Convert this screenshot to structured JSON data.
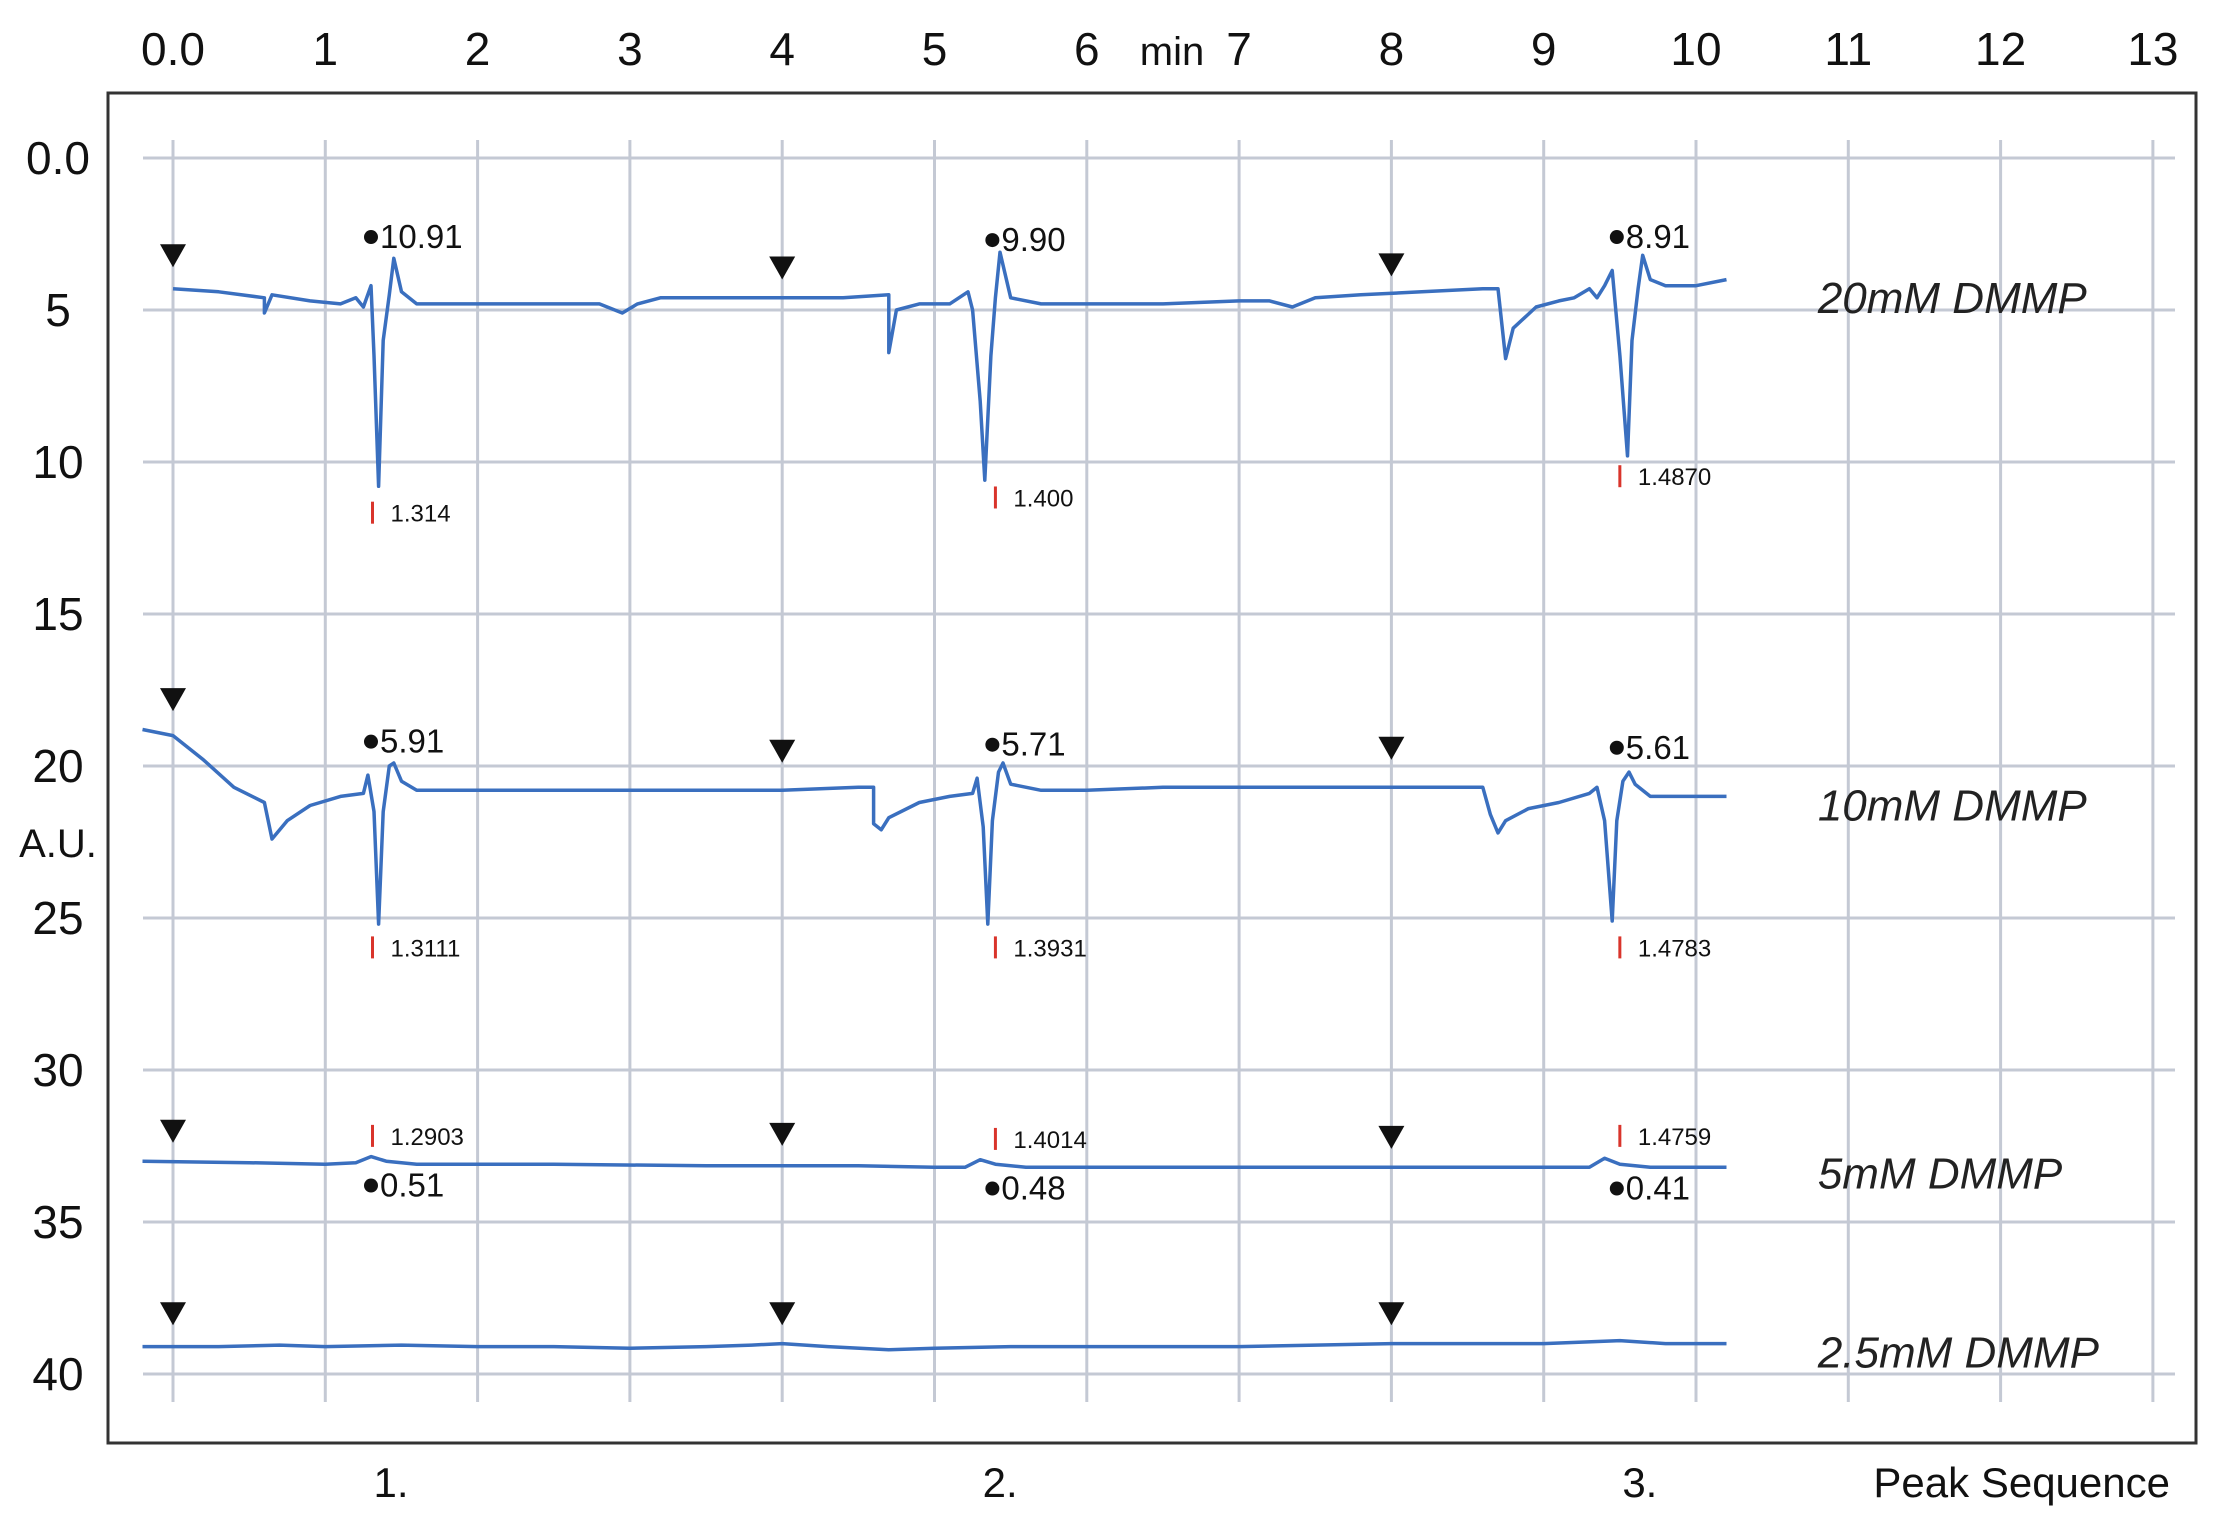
{
  "chart_data": {
    "type": "line",
    "title": "",
    "xlabel": "min",
    "ylabel": "A.U.",
    "xlim": [
      -0.2,
      13.0
    ],
    "ylim": [
      0,
      40
    ],
    "y_inverted": true,
    "grid": true,
    "x_axis_position": "top",
    "x_ticks": [
      "0.0",
      "1",
      "2",
      "3",
      "4",
      "5",
      "6",
      "7",
      "8",
      "9",
      "10",
      "11",
      "12",
      "13"
    ],
    "y_ticks": [
      "0.0",
      "5",
      "10",
      "15",
      "20",
      "25",
      "30",
      "35",
      "40"
    ],
    "peak_sequence_label": "Peak Sequence",
    "peak_sequence": [
      {
        "label": "1.",
        "x": 1.3
      },
      {
        "label": "2.",
        "x": 5.3
      },
      {
        "label": "3.",
        "x": 9.5
      }
    ],
    "series": [
      {
        "name": "20mM DMMP",
        "color": "#3a6fbf",
        "points": [
          [
            0,
            4.3
          ],
          [
            0.3,
            4.4
          ],
          [
            0.6,
            4.6
          ],
          [
            0.6,
            5.1
          ],
          [
            0.65,
            4.5
          ],
          [
            0.9,
            4.7
          ],
          [
            1.1,
            4.8
          ],
          [
            1.2,
            4.6
          ],
          [
            1.25,
            4.9
          ],
          [
            1.3,
            4.2
          ],
          [
            1.32,
            6.5
          ],
          [
            1.35,
            10.8
          ],
          [
            1.38,
            6.0
          ],
          [
            1.42,
            4.5
          ],
          [
            1.45,
            3.3
          ],
          [
            1.5,
            4.4
          ],
          [
            1.6,
            4.8
          ],
          [
            2.0,
            4.8
          ],
          [
            2.5,
            4.8
          ],
          [
            2.8,
            4.8
          ],
          [
            2.95,
            5.1
          ],
          [
            3.05,
            4.8
          ],
          [
            3.2,
            4.6
          ],
          [
            3.6,
            4.6
          ],
          [
            4.0,
            4.6
          ],
          [
            4.4,
            4.6
          ],
          [
            4.7,
            4.5
          ],
          [
            4.7,
            6.4
          ],
          [
            4.75,
            5.0
          ],
          [
            4.9,
            4.8
          ],
          [
            5.1,
            4.8
          ],
          [
            5.22,
            4.4
          ],
          [
            5.25,
            5.0
          ],
          [
            5.3,
            8.0
          ],
          [
            5.33,
            10.6
          ],
          [
            5.37,
            6.5
          ],
          [
            5.4,
            4.6
          ],
          [
            5.43,
            3.1
          ],
          [
            5.5,
            4.6
          ],
          [
            5.7,
            4.8
          ],
          [
            6.0,
            4.8
          ],
          [
            6.5,
            4.8
          ],
          [
            7.0,
            4.7
          ],
          [
            7.2,
            4.7
          ],
          [
            7.35,
            4.9
          ],
          [
            7.5,
            4.6
          ],
          [
            7.8,
            4.5
          ],
          [
            8.2,
            4.4
          ],
          [
            8.6,
            4.3
          ],
          [
            8.7,
            4.3
          ],
          [
            8.75,
            6.6
          ],
          [
            8.8,
            5.6
          ],
          [
            8.95,
            4.9
          ],
          [
            9.1,
            4.7
          ],
          [
            9.2,
            4.6
          ],
          [
            9.3,
            4.3
          ],
          [
            9.35,
            4.6
          ],
          [
            9.4,
            4.2
          ],
          [
            9.45,
            3.7
          ],
          [
            9.5,
            6.5
          ],
          [
            9.55,
            9.8
          ],
          [
            9.58,
            6.0
          ],
          [
            9.62,
            4.3
          ],
          [
            9.65,
            3.2
          ],
          [
            9.7,
            4.0
          ],
          [
            9.8,
            4.2
          ],
          [
            10.0,
            4.2
          ],
          [
            10.2,
            4.0
          ]
        ]
      },
      {
        "name": "10mM DMMP",
        "color": "#3a6fbf",
        "points": [
          [
            -0.2,
            18.8
          ],
          [
            0.0,
            19.0
          ],
          [
            0.2,
            19.8
          ],
          [
            0.4,
            20.7
          ],
          [
            0.6,
            21.2
          ],
          [
            0.65,
            22.4
          ],
          [
            0.75,
            21.8
          ],
          [
            0.9,
            21.3
          ],
          [
            1.1,
            21.0
          ],
          [
            1.25,
            20.9
          ],
          [
            1.28,
            20.3
          ],
          [
            1.32,
            21.5
          ],
          [
            1.35,
            25.2
          ],
          [
            1.38,
            21.5
          ],
          [
            1.42,
            20.0
          ],
          [
            1.45,
            19.9
          ],
          [
            1.5,
            20.5
          ],
          [
            1.6,
            20.8
          ],
          [
            2.0,
            20.8
          ],
          [
            2.5,
            20.8
          ],
          [
            3.0,
            20.8
          ],
          [
            3.5,
            20.8
          ],
          [
            4.0,
            20.8
          ],
          [
            4.5,
            20.7
          ],
          [
            4.6,
            20.7
          ],
          [
            4.6,
            21.9
          ],
          [
            4.65,
            22.1
          ],
          [
            4.7,
            21.7
          ],
          [
            4.9,
            21.2
          ],
          [
            5.1,
            21.0
          ],
          [
            5.25,
            20.9
          ],
          [
            5.28,
            20.4
          ],
          [
            5.32,
            22.0
          ],
          [
            5.35,
            25.2
          ],
          [
            5.38,
            21.8
          ],
          [
            5.42,
            20.2
          ],
          [
            5.45,
            19.9
          ],
          [
            5.5,
            20.6
          ],
          [
            5.7,
            20.8
          ],
          [
            6.0,
            20.8
          ],
          [
            6.5,
            20.7
          ],
          [
            7.0,
            20.7
          ],
          [
            7.5,
            20.7
          ],
          [
            8.0,
            20.7
          ],
          [
            8.5,
            20.7
          ],
          [
            8.6,
            20.7
          ],
          [
            8.65,
            21.6
          ],
          [
            8.7,
            22.2
          ],
          [
            8.75,
            21.8
          ],
          [
            8.9,
            21.4
          ],
          [
            9.1,
            21.2
          ],
          [
            9.3,
            20.9
          ],
          [
            9.35,
            20.7
          ],
          [
            9.4,
            21.8
          ],
          [
            9.45,
            25.1
          ],
          [
            9.48,
            21.8
          ],
          [
            9.52,
            20.5
          ],
          [
            9.56,
            20.2
          ],
          [
            9.6,
            20.6
          ],
          [
            9.7,
            21.0
          ],
          [
            10.0,
            21.0
          ],
          [
            10.2,
            21.0
          ]
        ]
      },
      {
        "name": "5mM DMMP",
        "color": "#3a6fbf",
        "points": [
          [
            -0.2,
            33.0
          ],
          [
            0.5,
            33.05
          ],
          [
            1.0,
            33.1
          ],
          [
            1.2,
            33.05
          ],
          [
            1.3,
            32.85
          ],
          [
            1.4,
            33.0
          ],
          [
            1.6,
            33.1
          ],
          [
            2.5,
            33.1
          ],
          [
            3.5,
            33.15
          ],
          [
            4.0,
            33.15
          ],
          [
            4.5,
            33.15
          ],
          [
            5.0,
            33.2
          ],
          [
            5.2,
            33.2
          ],
          [
            5.3,
            32.95
          ],
          [
            5.4,
            33.1
          ],
          [
            5.6,
            33.2
          ],
          [
            6.5,
            33.2
          ],
          [
            7.5,
            33.2
          ],
          [
            8.5,
            33.2
          ],
          [
            9.3,
            33.2
          ],
          [
            9.4,
            32.9
          ],
          [
            9.5,
            33.1
          ],
          [
            9.7,
            33.2
          ],
          [
            10.2,
            33.2
          ]
        ]
      },
      {
        "name": "2.5mM DMMP",
        "color": "#3a6fbf",
        "points": [
          [
            -0.2,
            39.1
          ],
          [
            0.3,
            39.1
          ],
          [
            0.7,
            39.05
          ],
          [
            1.0,
            39.1
          ],
          [
            1.5,
            39.05
          ],
          [
            2.0,
            39.1
          ],
          [
            2.5,
            39.1
          ],
          [
            3.0,
            39.15
          ],
          [
            3.5,
            39.1
          ],
          [
            3.8,
            39.05
          ],
          [
            4.0,
            39.0
          ],
          [
            4.3,
            39.1
          ],
          [
            4.7,
            39.2
          ],
          [
            5.0,
            39.15
          ],
          [
            5.5,
            39.1
          ],
          [
            6.0,
            39.1
          ],
          [
            6.5,
            39.1
          ],
          [
            7.0,
            39.1
          ],
          [
            7.5,
            39.05
          ],
          [
            8.0,
            39.0
          ],
          [
            8.5,
            39.0
          ],
          [
            9.0,
            39.0
          ],
          [
            9.5,
            38.9
          ],
          [
            9.8,
            39.0
          ],
          [
            10.2,
            39.0
          ]
        ]
      }
    ],
    "injection_markers": [
      {
        "x": 0.0,
        "y": 3.2
      },
      {
        "x": 4.0,
        "y": 3.6
      },
      {
        "x": 8.0,
        "y": 3.5
      },
      {
        "x": 0.0,
        "y": 17.8
      },
      {
        "x": 4.0,
        "y": 19.5
      },
      {
        "x": 8.0,
        "y": 19.4
      },
      {
        "x": 0.0,
        "y": 32.0
      },
      {
        "x": 4.0,
        "y": 32.1
      },
      {
        "x": 8.0,
        "y": 32.2
      },
      {
        "x": 0.0,
        "y": 38.0
      },
      {
        "x": 4.0,
        "y": 38.0
      },
      {
        "x": 8.0,
        "y": 38.0
      }
    ],
    "peak_labels": [
      {
        "x": 1.3,
        "y": 2.6,
        "text": "10.91"
      },
      {
        "x": 5.38,
        "y": 2.7,
        "text": "9.90"
      },
      {
        "x": 9.48,
        "y": 2.6,
        "text": "8.91"
      },
      {
        "x": 1.3,
        "y": 19.2,
        "text": "5.91"
      },
      {
        "x": 5.38,
        "y": 19.3,
        "text": "5.71"
      },
      {
        "x": 9.48,
        "y": 19.4,
        "text": "5.61"
      },
      {
        "x": 1.3,
        "y": 33.8,
        "text": "0.51"
      },
      {
        "x": 5.38,
        "y": 33.9,
        "text": "0.48"
      },
      {
        "x": 9.48,
        "y": 33.9,
        "text": "0.41"
      }
    ],
    "retention_labels": [
      {
        "x": 1.31,
        "y": 11.7,
        "text": "1.314"
      },
      {
        "x": 5.4,
        "y": 11.2,
        "text": "1.400"
      },
      {
        "x": 9.5,
        "y": 10.5,
        "text": "1.4870"
      },
      {
        "x": 1.31,
        "y": 26.0,
        "text": "1.3111"
      },
      {
        "x": 5.4,
        "y": 26.0,
        "text": "1.3931"
      },
      {
        "x": 9.5,
        "y": 26.0,
        "text": "1.4783"
      },
      {
        "x": 1.31,
        "y": 32.2,
        "text": "1.2903"
      },
      {
        "x": 5.4,
        "y": 32.3,
        "text": "1.4014"
      },
      {
        "x": 9.5,
        "y": 32.2,
        "text": "1.4759"
      }
    ],
    "series_labels": [
      {
        "x": 10.8,
        "y": 4.6,
        "text": "20mM DMMP"
      },
      {
        "x": 10.8,
        "y": 21.3,
        "text": "10mM DMMP"
      },
      {
        "x": 10.8,
        "y": 33.4,
        "text": "5mM DMMP"
      },
      {
        "x": 10.8,
        "y": 39.3,
        "text": "2.5mM DMMP"
      }
    ]
  }
}
